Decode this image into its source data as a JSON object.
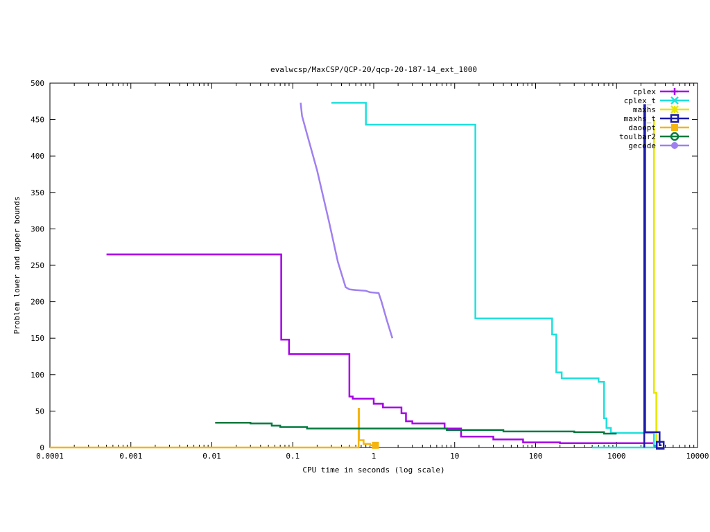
{
  "chart_data": {
    "type": "line",
    "title": "evalwcsp/MaxCSP/QCP-20/qcp-20-187-14_ext_1000",
    "xlabel": "CPU time in seconds (log scale)",
    "ylabel": "Problem lower and upper bounds",
    "xscale": "log",
    "xlim": [
      0.0001,
      10000
    ],
    "ylim": [
      0,
      500
    ],
    "x_ticks": [
      0.0001,
      0.001,
      0.01,
      0.1,
      1,
      10,
      100,
      1000,
      10000
    ],
    "x_tick_labels": [
      "0.0001",
      "0.001",
      "0.01",
      "0.1",
      "1",
      "10",
      "100",
      "1000",
      "10000"
    ],
    "y_ticks": [
      0,
      50,
      100,
      150,
      200,
      250,
      300,
      350,
      400,
      450,
      500
    ],
    "y_tick_labels": [
      "0",
      "50",
      "100",
      "150",
      "200",
      "250",
      "300",
      "350",
      "400",
      "450",
      "500"
    ],
    "grid": false,
    "legend_position": "top-right",
    "series": [
      {
        "name": "cplex",
        "color": "#a500e6",
        "marker": "plus",
        "step": true,
        "points": [
          [
            0.0005,
            265
          ],
          [
            0.072,
            265
          ],
          [
            0.072,
            148
          ],
          [
            0.09,
            148
          ],
          [
            0.09,
            128
          ],
          [
            0.5,
            128
          ],
          [
            0.5,
            70
          ],
          [
            0.55,
            70
          ],
          [
            0.55,
            67
          ],
          [
            1.0,
            67
          ],
          [
            1.0,
            60
          ],
          [
            1.3,
            60
          ],
          [
            1.3,
            55
          ],
          [
            2.2,
            55
          ],
          [
            2.2,
            47
          ],
          [
            2.5,
            47
          ],
          [
            2.5,
            36
          ],
          [
            3.0,
            36
          ],
          [
            3.0,
            33
          ],
          [
            7.5,
            33
          ],
          [
            7.5,
            26
          ],
          [
            12,
            26
          ],
          [
            12,
            15
          ],
          [
            30,
            15
          ],
          [
            30,
            11
          ],
          [
            70,
            11
          ],
          [
            70,
            7
          ],
          [
            200,
            7
          ],
          [
            200,
            6
          ],
          [
            2900,
            6
          ]
        ]
      },
      {
        "name": "cplex_t",
        "color": "#1ee0dc",
        "marker": "cross",
        "step": true,
        "points": [
          [
            0.3,
            473
          ],
          [
            0.8,
            473
          ],
          [
            0.8,
            443
          ],
          [
            18,
            443
          ],
          [
            18,
            177
          ],
          [
            160,
            177
          ],
          [
            160,
            155
          ],
          [
            180,
            155
          ],
          [
            180,
            103
          ],
          [
            210,
            103
          ],
          [
            210,
            95
          ],
          [
            600,
            95
          ],
          [
            600,
            90
          ],
          [
            700,
            90
          ],
          [
            700,
            40
          ],
          [
            750,
            40
          ],
          [
            750,
            27
          ],
          [
            850,
            27
          ],
          [
            850,
            20
          ],
          [
            2900,
            20
          ],
          [
            2900,
            0
          ],
          [
            500,
            0
          ]
        ]
      },
      {
        "name": "maxhs",
        "color": "#e6e600",
        "marker": "star",
        "step": true,
        "points": [
          [
            2900,
            450
          ],
          [
            2900,
            75
          ],
          [
            3100,
            75
          ],
          [
            3100,
            0
          ]
        ]
      },
      {
        "name": "maxhs_t",
        "color": "#1a1aa8",
        "marker": "box",
        "step": true,
        "points": [
          [
            2200,
            0
          ],
          [
            2200,
            470
          ],
          [
            2250,
            470
          ],
          [
            2250,
            21
          ],
          [
            3400,
            21
          ],
          [
            3400,
            3
          ],
          [
            3600,
            3
          ]
        ]
      },
      {
        "name": "daoopt",
        "color": "#f5b50f",
        "marker": "filled-box",
        "step": true,
        "points": [
          [
            0.0001,
            0
          ],
          [
            0.65,
            0
          ],
          [
            0.65,
            53
          ],
          [
            0.66,
            53
          ],
          [
            0.66,
            10
          ],
          [
            0.75,
            10
          ],
          [
            0.75,
            5
          ],
          [
            0.9,
            5
          ],
          [
            0.9,
            3
          ],
          [
            1.1,
            3
          ],
          [
            1.1,
            0
          ]
        ]
      },
      {
        "name": "toulbar2",
        "color": "#007a3d",
        "marker": "circle",
        "step": true,
        "points": [
          [
            0.011,
            34
          ],
          [
            0.03,
            34
          ],
          [
            0.03,
            33
          ],
          [
            0.055,
            33
          ],
          [
            0.055,
            30
          ],
          [
            0.07,
            30
          ],
          [
            0.07,
            28
          ],
          [
            0.15,
            28
          ],
          [
            0.15,
            26
          ],
          [
            8,
            26
          ],
          [
            8,
            24
          ],
          [
            40,
            24
          ],
          [
            40,
            22
          ],
          [
            300,
            22
          ],
          [
            300,
            21
          ],
          [
            700,
            21
          ],
          [
            700,
            19
          ],
          [
            1000,
            19
          ]
        ]
      },
      {
        "name": "gecode",
        "color": "#9f80f0",
        "marker": "filled-circle",
        "step": false,
        "points": [
          [
            0.125,
            473
          ],
          [
            0.13,
            455
          ],
          [
            0.15,
            430
          ],
          [
            0.2,
            380
          ],
          [
            0.28,
            310
          ],
          [
            0.36,
            255
          ],
          [
            0.45,
            220
          ],
          [
            0.5,
            217
          ],
          [
            0.6,
            216
          ],
          [
            0.8,
            215
          ],
          [
            0.9,
            213
          ],
          [
            1.15,
            212
          ],
          [
            1.25,
            200
          ],
          [
            1.45,
            175
          ],
          [
            1.7,
            150
          ]
        ]
      }
    ]
  }
}
